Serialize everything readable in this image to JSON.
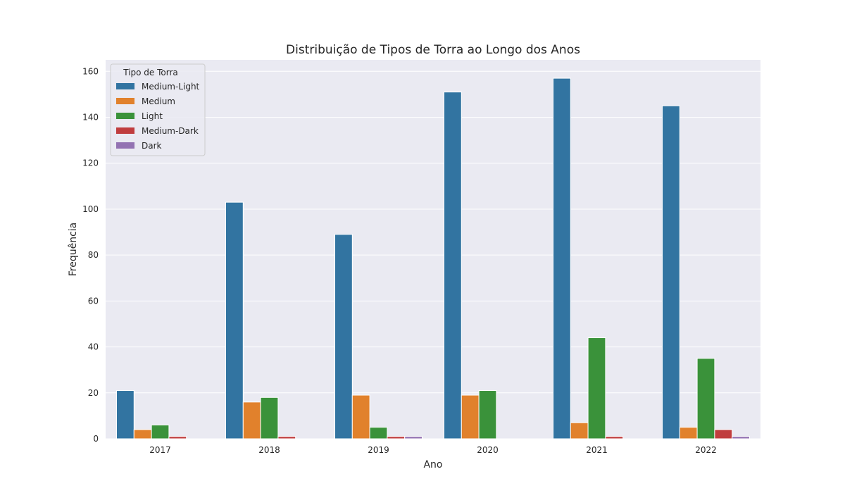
{
  "chart_data": {
    "type": "bar",
    "title": "Distribuição de Tipos de Torra ao Longo dos Anos",
    "xlabel": "Ano",
    "ylabel": "Frequência",
    "categories": [
      "2017",
      "2018",
      "2019",
      "2020",
      "2021",
      "2022"
    ],
    "ylim": [
      0,
      165
    ],
    "yticks": [
      0,
      20,
      40,
      60,
      80,
      100,
      120,
      140,
      160
    ],
    "grid": true,
    "legend": {
      "title": "Tipo de Torra",
      "placement": "top-left"
    },
    "series": [
      {
        "name": "Medium-Light",
        "color": "#3274a1",
        "values": [
          21,
          103,
          89,
          151,
          157,
          145
        ]
      },
      {
        "name": "Medium",
        "color": "#e1812c",
        "values": [
          4,
          16,
          19,
          19,
          7,
          5
        ]
      },
      {
        "name": "Light",
        "color": "#3a923a",
        "values": [
          6,
          18,
          5,
          21,
          44,
          35
        ]
      },
      {
        "name": "Medium-Dark",
        "color": "#c03d3e",
        "values": [
          1,
          1,
          1,
          0,
          1,
          4
        ]
      },
      {
        "name": "Dark",
        "color": "#9372b2",
        "values": [
          0,
          0,
          1,
          0,
          0,
          1
        ]
      }
    ],
    "background": "#eaeaf2"
  }
}
